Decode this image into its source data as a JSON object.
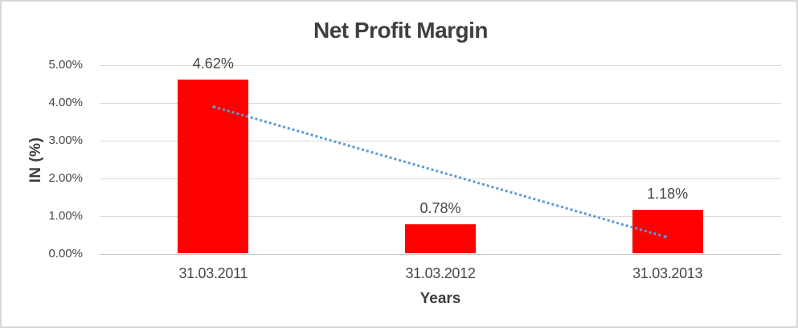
{
  "chart_data": {
    "type": "bar",
    "title": "Net Profit Margin",
    "xlabel": "Years",
    "ylabel": "IN (%)",
    "categories": [
      "31.03.2011",
      "31.03.2012",
      "31.03.2013"
    ],
    "values": [
      4.62,
      0.78,
      1.18
    ],
    "data_labels": [
      "4.62%",
      "0.78%",
      "1.18%"
    ],
    "yticks": [
      "5.00%",
      "4.00%",
      "3.00%",
      "2.00%",
      "1.00%",
      "0.00%"
    ],
    "ylim": [
      0,
      5
    ],
    "ytick_step": 1,
    "grid": true,
    "legend_position": "none",
    "bar_color": "#ff0000",
    "trendline": {
      "type": "linear",
      "style": "dotted",
      "color": "#5b9bd5",
      "start_value": 3.93,
      "end_value": 0.47
    },
    "colors": {
      "title_text": "#3f3f3f",
      "label_text": "#464646",
      "gridline": "#d9d9d9",
      "axis_line": "#c9c9c9",
      "chart_border": "#d7d7d7",
      "background": "#ffffff"
    }
  }
}
